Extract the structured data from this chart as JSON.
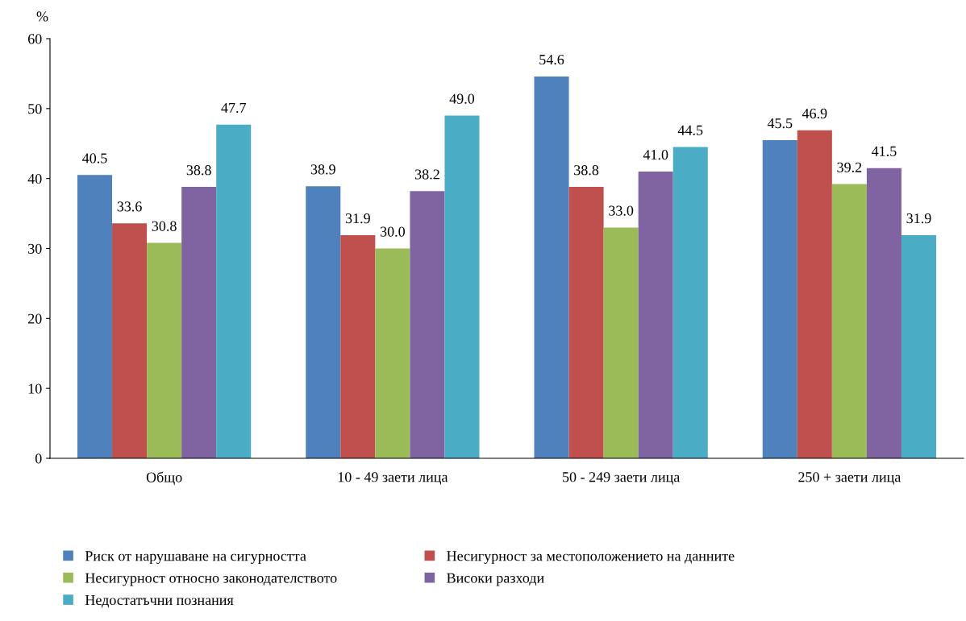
{
  "chart_data": {
    "type": "bar",
    "ylabel": "%",
    "categories": [
      "Общо",
      "10 - 49 заети лица",
      "50 - 249 заети лица",
      "250 + заети лица"
    ],
    "series": [
      {
        "name": "Риск от нарушаване на сигурността",
        "color": "#4f81bd",
        "values": [
          40.5,
          38.9,
          54.6,
          45.5
        ],
        "value_labels": [
          "40.5",
          "38.9",
          "54.6",
          "45.5"
        ]
      },
      {
        "name": "Несигурност за местоположението на данните",
        "color": "#c0504d",
        "values": [
          33.6,
          31.9,
          38.8,
          46.9
        ],
        "value_labels": [
          "33.6",
          "31.9",
          "38.8",
          "46.9"
        ]
      },
      {
        "name": "Несигурност относно законодателството",
        "color": "#9bbb59",
        "values": [
          30.8,
          30.0,
          33.0,
          39.2
        ],
        "value_labels": [
          "30.8",
          "30.0",
          "33.0",
          "39.2"
        ]
      },
      {
        "name": "Високи разходи",
        "color": "#8064a2",
        "values": [
          38.8,
          38.2,
          41.0,
          41.5
        ],
        "value_labels": [
          "38.8",
          "38.2",
          "41.0",
          "41.5"
        ]
      },
      {
        "name": "Недостатъчни познания",
        "color": "#4bacc6",
        "values": [
          47.7,
          49.0,
          44.5,
          31.9
        ],
        "value_labels": [
          "47.7",
          "49.0",
          "44.5",
          "31.9"
        ]
      }
    ],
    "ylim": [
      0,
      60
    ],
    "yticks": [
      0,
      10,
      20,
      30,
      40,
      50,
      60
    ],
    "grid": false,
    "legend": "bottom"
  }
}
